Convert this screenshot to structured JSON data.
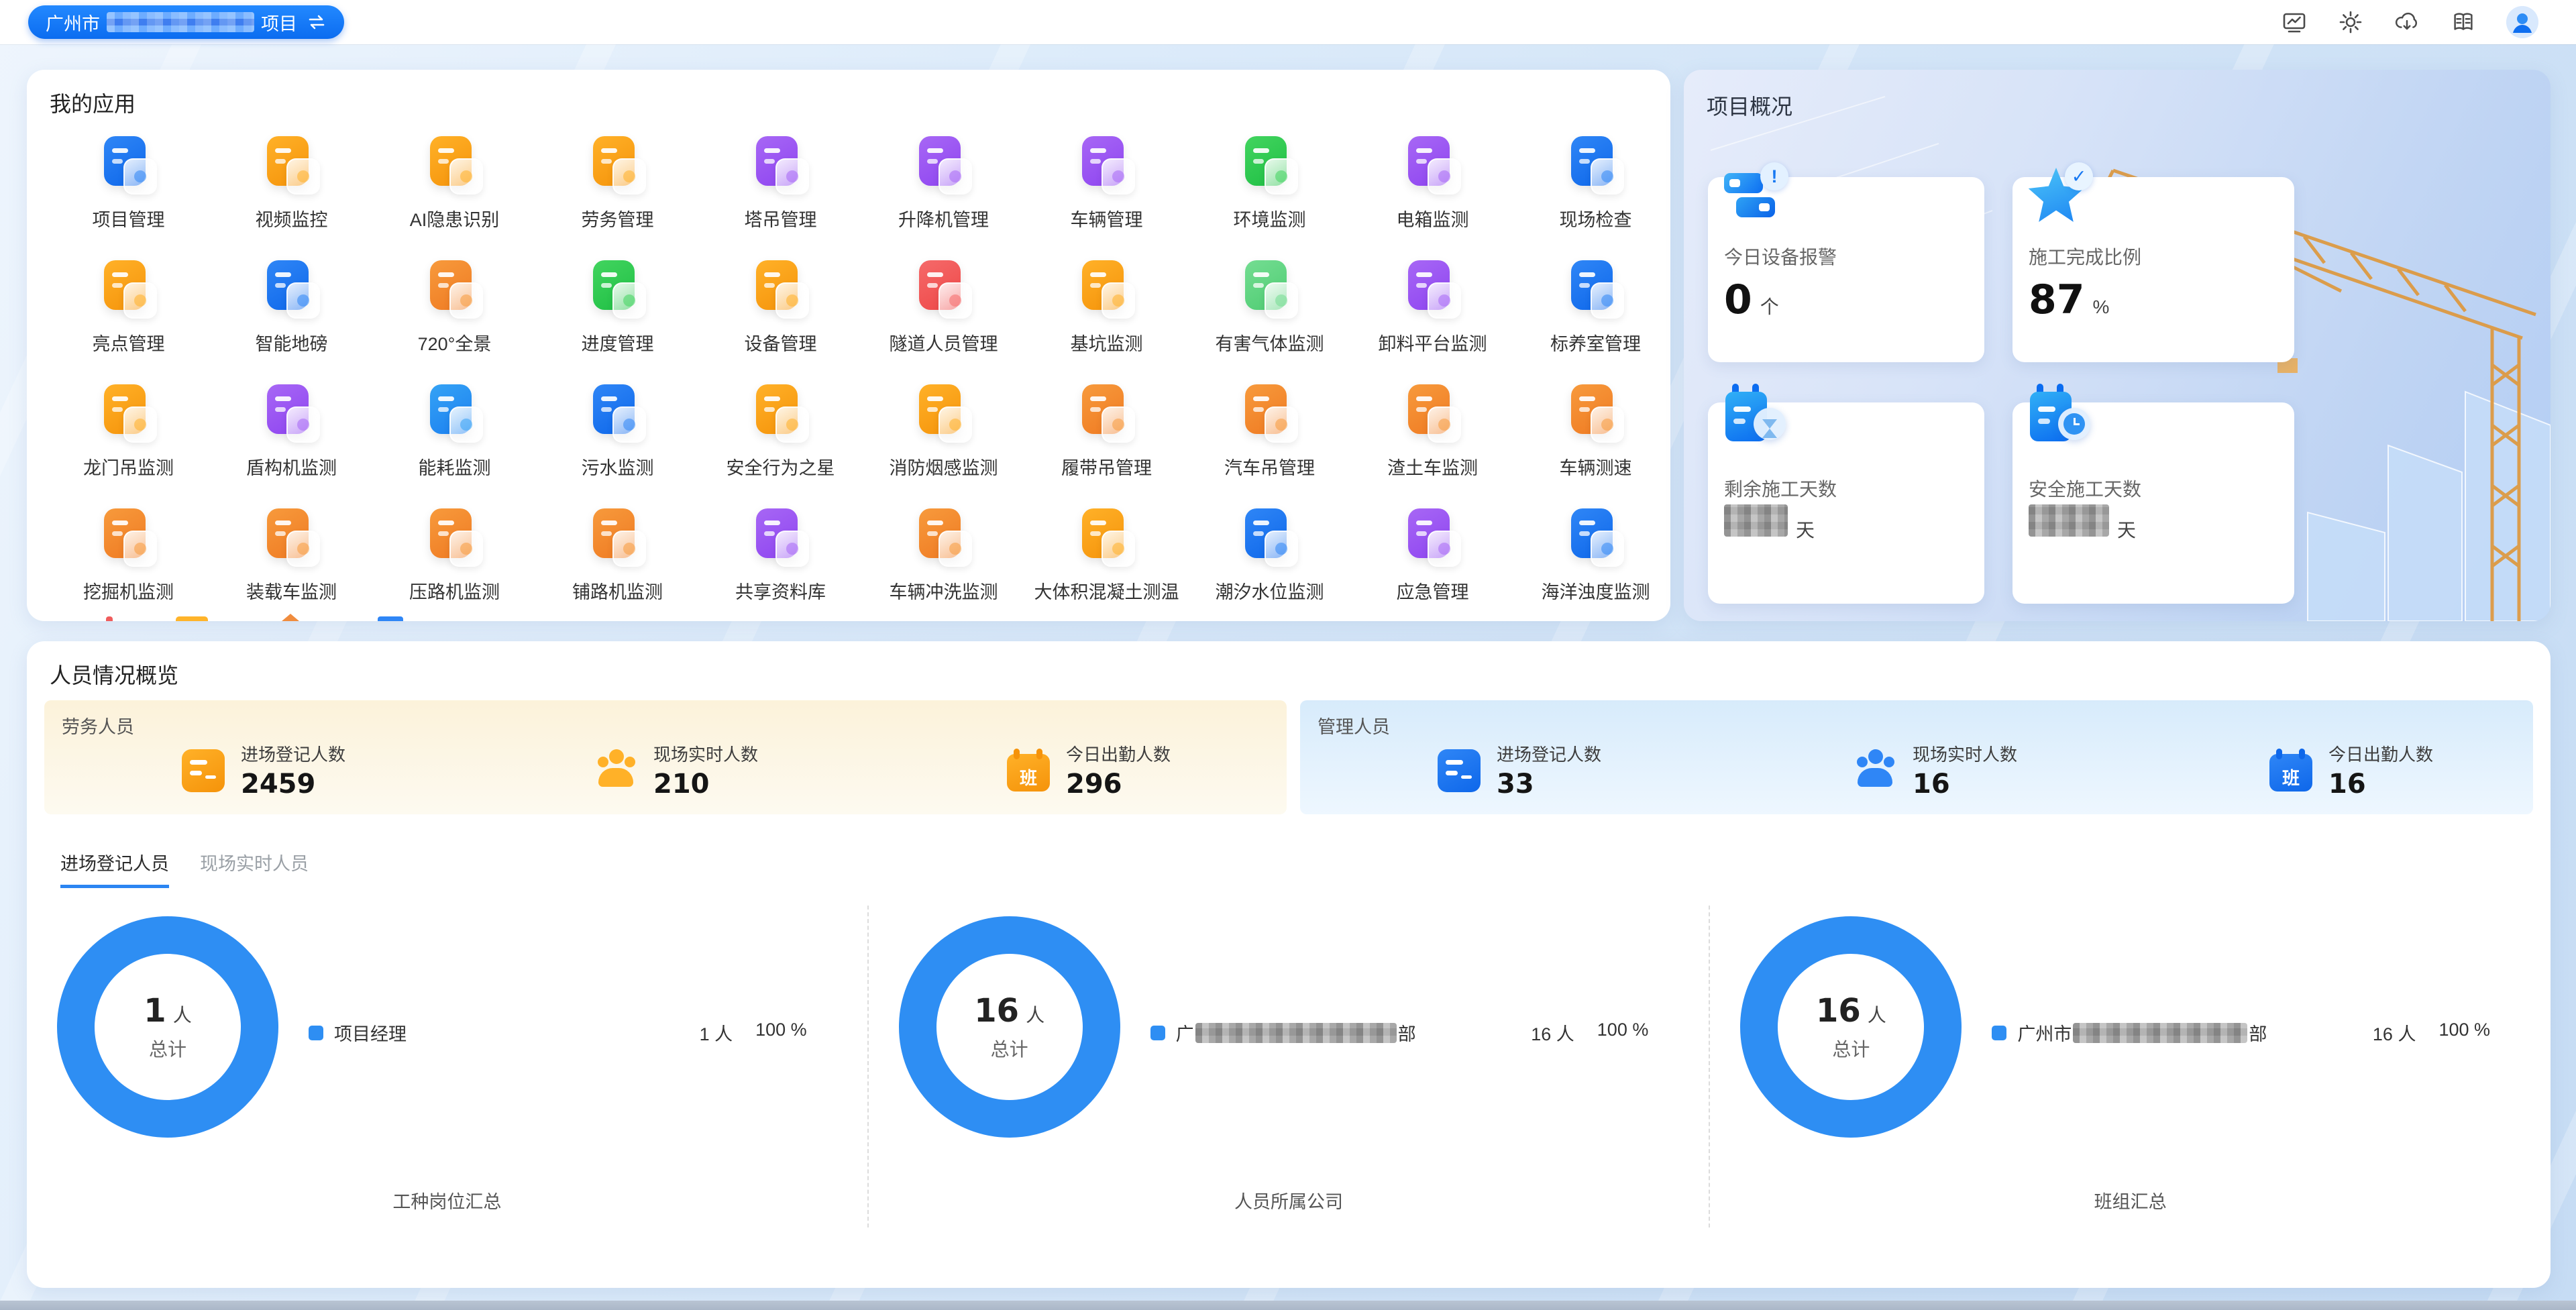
{
  "colors": {
    "accent_blue": "#1677f0",
    "donut_blue": "#2e8ef3",
    "labor_panel": "#fcf2da",
    "management_panel": "#d7ebfb",
    "topbar_pill": "#0b6cf0"
  },
  "topbar": {
    "project": {
      "prefix": "广州市",
      "suffix": "项目"
    }
  },
  "my_apps": {
    "title": "我的应用",
    "theme_colors": {
      "blue": {
        "main": "#2f86f6",
        "dark": "#0e67ea"
      },
      "skyblue": {
        "main": "#35a3f5",
        "dark": "#1b7ff0"
      },
      "orange": {
        "main": "#ffb128",
        "dark": "#f5930a"
      },
      "amber": {
        "main": "#f79a3c",
        "dark": "#ef7a22"
      },
      "purple": {
        "main": "#a767f5",
        "dark": "#8e44f0"
      },
      "green": {
        "main": "#42d45f",
        "dark": "#1fbf44"
      },
      "lightgreen": {
        "main": "#74dd92",
        "dark": "#4ecc72"
      },
      "red": {
        "main": "#f56a6a",
        "dark": "#ee4747"
      }
    },
    "partial_row_colors": [
      "#f05c5c",
      "#ffb42a",
      "#f08c3e",
      "#2f86f6"
    ],
    "apps": [
      {
        "label": "项目管理",
        "theme": "blue",
        "icon": "project-folder-icon"
      },
      {
        "label": "视频监控",
        "theme": "orange",
        "icon": "video-camera-icon"
      },
      {
        "label": "AI隐患识别",
        "theme": "orange",
        "icon": "ai-camera-icon"
      },
      {
        "label": "劳务管理",
        "theme": "orange",
        "icon": "worker-icon"
      },
      {
        "label": "塔吊管理",
        "theme": "purple",
        "icon": "tower-crane-icon"
      },
      {
        "label": "升降机管理",
        "theme": "purple",
        "icon": "hoist-icon"
      },
      {
        "label": "车辆管理",
        "theme": "purple",
        "icon": "vehicle-icon"
      },
      {
        "label": "环境监测",
        "theme": "green",
        "icon": "leaf-environment-icon"
      },
      {
        "label": "电箱监测",
        "theme": "purple",
        "icon": "power-box-icon"
      },
      {
        "label": "现场检查",
        "theme": "blue",
        "icon": "site-inspection-icon"
      },
      {
        "label": "亮点管理",
        "theme": "orange",
        "icon": "thumb-up-icon"
      },
      {
        "label": "智能地磅",
        "theme": "blue",
        "icon": "weighbridge-icon"
      },
      {
        "label": "720°全景",
        "theme": "amber",
        "icon": "panorama-icon"
      },
      {
        "label": "进度管理",
        "theme": "green",
        "icon": "schedule-check-icon"
      },
      {
        "label": "设备管理",
        "theme": "orange",
        "icon": "device-signal-icon"
      },
      {
        "label": "隧道人员管理",
        "theme": "red",
        "icon": "tunnel-people-icon"
      },
      {
        "label": "基坑监测",
        "theme": "orange",
        "icon": "pit-gauge-icon"
      },
      {
        "label": "有害气体监测",
        "theme": "lightgreen",
        "icon": "gas-monitor-icon"
      },
      {
        "label": "卸料平台监测",
        "theme": "purple",
        "icon": "unloading-platform-icon"
      },
      {
        "label": "标养室管理",
        "theme": "blue",
        "icon": "curing-room-icon"
      },
      {
        "label": "龙门吊监测",
        "theme": "orange",
        "icon": "gantry-crane-icon"
      },
      {
        "label": "盾构机监测",
        "theme": "purple",
        "icon": "shield-machine-icon"
      },
      {
        "label": "能耗监测",
        "theme": "skyblue",
        "icon": "energy-flame-icon"
      },
      {
        "label": "污水监测",
        "theme": "blue",
        "icon": "sewage-icon"
      },
      {
        "label": "安全行为之星",
        "theme": "orange",
        "icon": "safety-star-shield-icon"
      },
      {
        "label": "消防烟感监测",
        "theme": "orange",
        "icon": "smoke-detector-icon"
      },
      {
        "label": "履带吊管理",
        "theme": "amber",
        "icon": "crawler-crane-icon"
      },
      {
        "label": "汽车吊管理",
        "theme": "amber",
        "icon": "truck-crane-icon"
      },
      {
        "label": "渣土车监测",
        "theme": "amber",
        "icon": "dump-truck-icon"
      },
      {
        "label": "车辆测速",
        "theme": "amber",
        "icon": "speed-check-icon"
      },
      {
        "label": "挖掘机监测",
        "theme": "amber",
        "icon": "excavator-icon"
      },
      {
        "label": "装载车监测",
        "theme": "amber",
        "icon": "loader-icon"
      },
      {
        "label": "压路机监测",
        "theme": "amber",
        "icon": "road-roller-icon"
      },
      {
        "label": "铺路机监测",
        "theme": "amber",
        "icon": "paver-icon"
      },
      {
        "label": "共享资料库",
        "theme": "purple",
        "icon": "share-library-icon"
      },
      {
        "label": "车辆冲洗监测",
        "theme": "amber",
        "icon": "car-wash-icon"
      },
      {
        "label": "大体积混凝土测温",
        "theme": "orange",
        "icon": "concrete-temperature-icon"
      },
      {
        "label": "潮汐水位监测",
        "theme": "blue",
        "icon": "tide-level-icon"
      },
      {
        "label": "应急管理",
        "theme": "purple",
        "icon": "emergency-icon"
      },
      {
        "label": "海洋浊度监测",
        "theme": "blue",
        "icon": "ocean-turbidity-icon"
      }
    ]
  },
  "project_overview": {
    "title": "项目概况",
    "cards": [
      {
        "label": "今日设备报警",
        "value": "0",
        "unit": "个",
        "redacted": false
      },
      {
        "label": "施工完成比例",
        "value": "87",
        "unit": "%",
        "redacted": false
      },
      {
        "label": "剩余施工天数",
        "value": "",
        "unit": "天",
        "redacted": true
      },
      {
        "label": "安全施工天数",
        "value": "",
        "unit": "天",
        "redacted": true
      }
    ]
  },
  "personnel": {
    "title": "人员情况概览",
    "badge_char": "班",
    "groups": [
      {
        "name": "劳务人员",
        "stats": [
          {
            "label": "进场登记人数",
            "value": "2459"
          },
          {
            "label": "现场实时人数",
            "value": "210"
          },
          {
            "label": "今日出勤人数",
            "value": "296"
          }
        ]
      },
      {
        "name": "管理人员",
        "stats": [
          {
            "label": "进场登记人数",
            "value": "33"
          },
          {
            "label": "现场实时人数",
            "value": "16"
          },
          {
            "label": "今日出勤人数",
            "value": "16"
          }
        ]
      }
    ],
    "tabs": [
      {
        "label": "进场登记人员",
        "active": true
      },
      {
        "label": "现场实时人员",
        "active": false
      }
    ]
  },
  "charts": [
    {
      "type": "pie",
      "color": "#2e8ef3",
      "total": "1",
      "total_unit": "人",
      "total_label": "总计",
      "legend": {
        "label": "项目经理",
        "count": "1 人",
        "percent": "100 %"
      },
      "caption": "工种岗位汇总"
    },
    {
      "type": "pie",
      "color": "#2e8ef3",
      "total": "16",
      "total_unit": "人",
      "total_label": "总计",
      "legend": {
        "prefix": "广",
        "suffix": "部",
        "redacted": true,
        "count": "16 人",
        "percent": "100 %"
      },
      "caption": "人员所属公司"
    },
    {
      "type": "pie",
      "color": "#2e8ef3",
      "total": "16",
      "total_unit": "人",
      "total_label": "总计",
      "legend": {
        "prefix": "广州市",
        "suffix": "部",
        "redacted": true,
        "count": "16 人",
        "percent": "100 %"
      },
      "caption": "班组汇总"
    }
  ]
}
